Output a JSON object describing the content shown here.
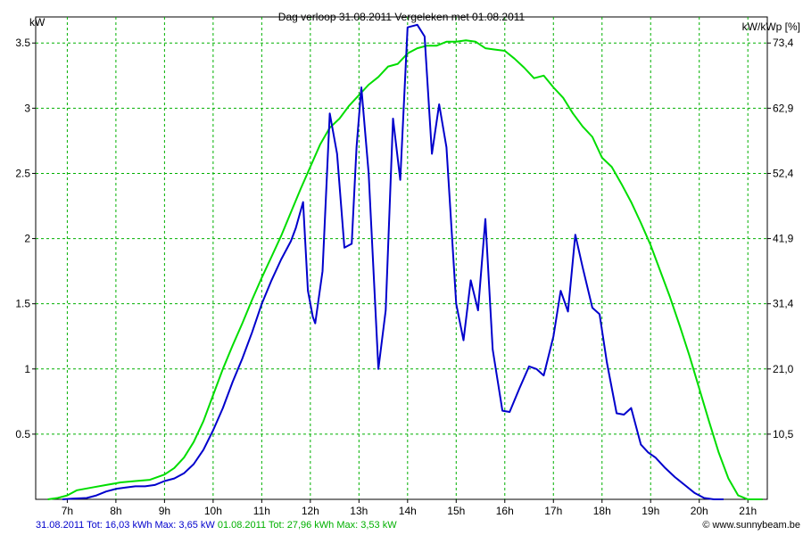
{
  "chart_data": {
    "type": "line",
    "title": "Dag  verloop 31.08.2011   Vergeleken met 01.08.2011",
    "ylabel_left": "kW",
    "ylabel_right": "kW/kWp [%]",
    "x_range_hours": [
      6.35,
      21.4
    ],
    "ylim": [
      0,
      3.7
    ],
    "x_tick_labels": [
      "7h",
      "8h",
      "9h",
      "10h",
      "11h",
      "12h",
      "13h",
      "14h",
      "15h",
      "16h",
      "17h",
      "18h",
      "19h",
      "20h",
      "21h"
    ],
    "y_tick_labels_left": [
      "0.5",
      "1",
      "1.5",
      "2",
      "2.5",
      "3",
      "3.5"
    ],
    "y_tick_labels_right": [
      "10,5",
      "21,0",
      "31,4",
      "41,9",
      "52,4",
      "62,9",
      "73,4"
    ],
    "grid": true,
    "colors": {
      "series1": "#0000cc",
      "series2": "#00dd00",
      "grid": "#00b000",
      "footer1": "#0000cc",
      "footer2": "#00b000"
    },
    "series": [
      {
        "name": "31.08.2011",
        "points": [
          [
            6.9,
            0.0
          ],
          [
            7.1,
            0.005
          ],
          [
            7.4,
            0.01
          ],
          [
            7.6,
            0.03
          ],
          [
            7.8,
            0.06
          ],
          [
            8.0,
            0.08
          ],
          [
            8.2,
            0.09
          ],
          [
            8.4,
            0.1
          ],
          [
            8.6,
            0.1
          ],
          [
            8.8,
            0.11
          ],
          [
            9.0,
            0.14
          ],
          [
            9.2,
            0.16
          ],
          [
            9.4,
            0.2
          ],
          [
            9.6,
            0.27
          ],
          [
            9.8,
            0.38
          ],
          [
            10.0,
            0.53
          ],
          [
            10.2,
            0.7
          ],
          [
            10.4,
            0.9
          ],
          [
            10.6,
            1.08
          ],
          [
            10.8,
            1.28
          ],
          [
            11.0,
            1.5
          ],
          [
            11.2,
            1.68
          ],
          [
            11.4,
            1.84
          ],
          [
            11.6,
            1.98
          ],
          [
            11.7,
            2.08
          ],
          [
            11.85,
            2.28
          ],
          [
            11.95,
            1.6
          ],
          [
            12.05,
            1.4
          ],
          [
            12.1,
            1.35
          ],
          [
            12.25,
            1.75
          ],
          [
            12.4,
            2.96
          ],
          [
            12.55,
            2.65
          ],
          [
            12.7,
            1.93
          ],
          [
            12.85,
            1.96
          ],
          [
            12.95,
            2.7
          ],
          [
            13.05,
            3.16
          ],
          [
            13.2,
            2.5
          ],
          [
            13.4,
            1.0
          ],
          [
            13.55,
            1.45
          ],
          [
            13.7,
            2.92
          ],
          [
            13.85,
            2.45
          ],
          [
            14.0,
            3.62
          ],
          [
            14.2,
            3.64
          ],
          [
            14.35,
            3.55
          ],
          [
            14.5,
            2.65
          ],
          [
            14.65,
            3.03
          ],
          [
            14.8,
            2.7
          ],
          [
            15.0,
            1.5
          ],
          [
            15.15,
            1.22
          ],
          [
            15.3,
            1.68
          ],
          [
            15.45,
            1.45
          ],
          [
            15.6,
            2.15
          ],
          [
            15.75,
            1.15
          ],
          [
            15.95,
            0.68
          ],
          [
            16.1,
            0.67
          ],
          [
            16.3,
            0.85
          ],
          [
            16.5,
            1.02
          ],
          [
            16.65,
            1.0
          ],
          [
            16.8,
            0.95
          ],
          [
            17.0,
            1.25
          ],
          [
            17.15,
            1.6
          ],
          [
            17.3,
            1.44
          ],
          [
            17.45,
            2.03
          ],
          [
            17.6,
            1.78
          ],
          [
            17.8,
            1.47
          ],
          [
            17.95,
            1.42
          ],
          [
            18.1,
            1.05
          ],
          [
            18.3,
            0.66
          ],
          [
            18.45,
            0.65
          ],
          [
            18.6,
            0.7
          ],
          [
            18.8,
            0.42
          ],
          [
            18.95,
            0.36
          ],
          [
            19.1,
            0.32
          ],
          [
            19.3,
            0.24
          ],
          [
            19.5,
            0.17
          ],
          [
            19.7,
            0.11
          ],
          [
            19.9,
            0.05
          ],
          [
            20.1,
            0.01
          ],
          [
            20.3,
            0.0
          ],
          [
            20.5,
            0.0
          ]
        ]
      },
      {
        "name": "01.08.2011",
        "points": [
          [
            6.6,
            0.0
          ],
          [
            6.8,
            0.01
          ],
          [
            7.0,
            0.03
          ],
          [
            7.2,
            0.07
          ],
          [
            7.5,
            0.09
          ],
          [
            7.8,
            0.11
          ],
          [
            8.1,
            0.13
          ],
          [
            8.4,
            0.14
          ],
          [
            8.7,
            0.15
          ],
          [
            9.0,
            0.19
          ],
          [
            9.2,
            0.24
          ],
          [
            9.4,
            0.32
          ],
          [
            9.6,
            0.44
          ],
          [
            9.8,
            0.6
          ],
          [
            10.0,
            0.8
          ],
          [
            10.2,
            1.0
          ],
          [
            10.4,
            1.18
          ],
          [
            10.6,
            1.35
          ],
          [
            10.8,
            1.53
          ],
          [
            11.0,
            1.7
          ],
          [
            11.2,
            1.86
          ],
          [
            11.4,
            2.02
          ],
          [
            11.6,
            2.2
          ],
          [
            11.8,
            2.38
          ],
          [
            12.0,
            2.55
          ],
          [
            12.2,
            2.72
          ],
          [
            12.4,
            2.85
          ],
          [
            12.6,
            2.92
          ],
          [
            12.8,
            3.02
          ],
          [
            13.0,
            3.1
          ],
          [
            13.2,
            3.18
          ],
          [
            13.4,
            3.24
          ],
          [
            13.6,
            3.32
          ],
          [
            13.8,
            3.34
          ],
          [
            14.0,
            3.42
          ],
          [
            14.2,
            3.46
          ],
          [
            14.4,
            3.48
          ],
          [
            14.6,
            3.48
          ],
          [
            14.8,
            3.51
          ],
          [
            15.0,
            3.51
          ],
          [
            15.2,
            3.52
          ],
          [
            15.4,
            3.51
          ],
          [
            15.6,
            3.46
          ],
          [
            15.8,
            3.45
          ],
          [
            16.0,
            3.44
          ],
          [
            16.2,
            3.38
          ],
          [
            16.4,
            3.31
          ],
          [
            16.6,
            3.23
          ],
          [
            16.8,
            3.25
          ],
          [
            17.0,
            3.16
          ],
          [
            17.2,
            3.08
          ],
          [
            17.4,
            2.96
          ],
          [
            17.6,
            2.86
          ],
          [
            17.8,
            2.78
          ],
          [
            18.0,
            2.62
          ],
          [
            18.2,
            2.55
          ],
          [
            18.4,
            2.42
          ],
          [
            18.6,
            2.28
          ],
          [
            18.8,
            2.12
          ],
          [
            19.0,
            1.95
          ],
          [
            19.2,
            1.75
          ],
          [
            19.4,
            1.55
          ],
          [
            19.6,
            1.33
          ],
          [
            19.8,
            1.1
          ],
          [
            20.0,
            0.85
          ],
          [
            20.2,
            0.6
          ],
          [
            20.4,
            0.36
          ],
          [
            20.6,
            0.16
          ],
          [
            20.8,
            0.03
          ],
          [
            21.0,
            0.0
          ],
          [
            21.3,
            0.0
          ]
        ]
      }
    ]
  },
  "footer": {
    "left_1": "31.08.2011 Tot: 16,03 kWh Max: 3,65 kW",
    "left_2": "01.08.2011 Tot: 27,96 kWh Max: 3,53 kW",
    "right": "© www.sunnybeam.be"
  }
}
